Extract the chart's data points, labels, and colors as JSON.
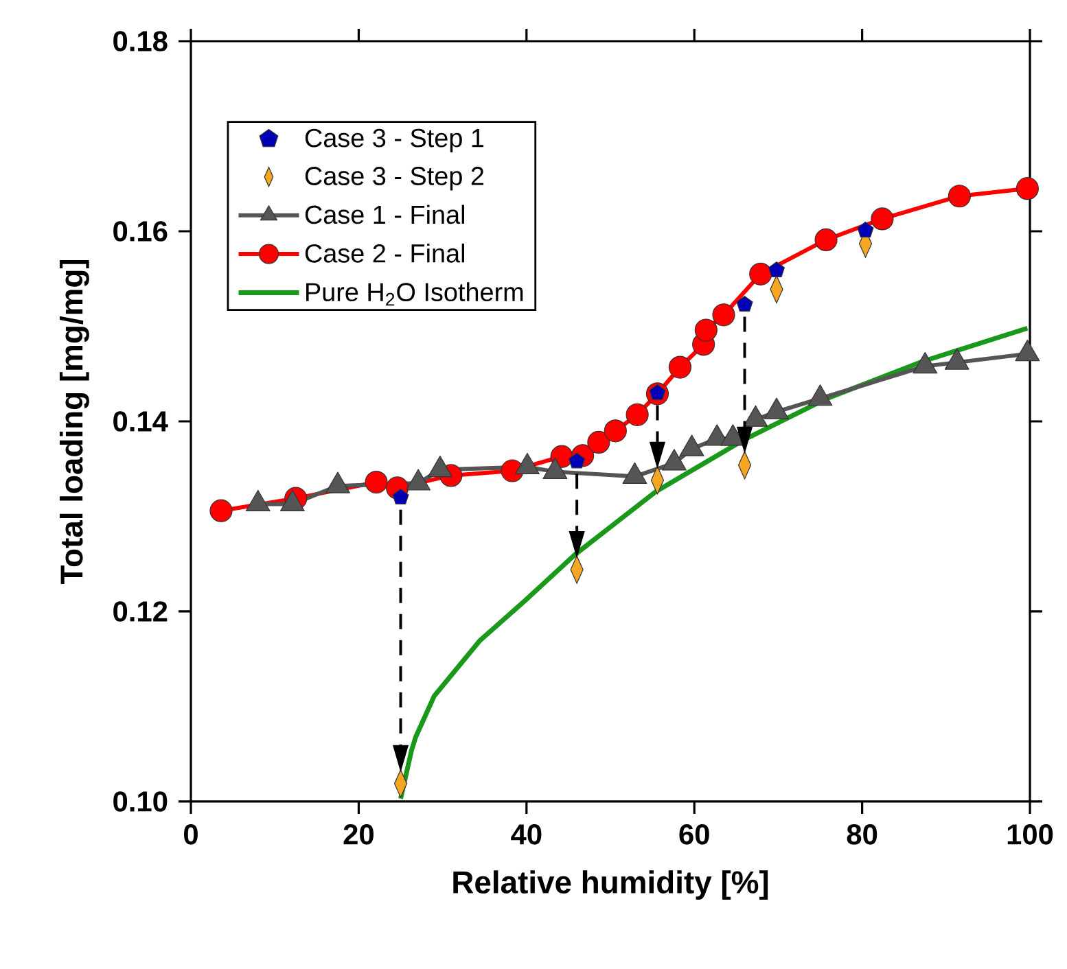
{
  "chart_data": {
    "type": "line",
    "xlabel": "Relative humidity [%]",
    "ylabel": "Total loading [mg/mg]",
    "xlim": [
      0,
      100
    ],
    "ylim": [
      0.1,
      0.18
    ],
    "xticks": [
      0,
      20,
      40,
      60,
      80,
      100
    ],
    "yticks": [
      {
        "value": 0.1,
        "label": "0.10"
      },
      0.12,
      0.14,
      0.16,
      0.18
    ],
    "legend": "top left",
    "series": [
      {
        "name": "Case 3 - Step 1",
        "type": "scatter",
        "color": "#0000b4",
        "x": [
          25,
          46,
          55.6,
          66,
          69.8,
          80.4
        ],
        "values": [
          0.132,
          0.1358,
          0.143,
          0.1523,
          0.1559,
          0.1601
        ]
      },
      {
        "name": "Case 3 - Step 2",
        "type": "scatter",
        "marker": "diamond",
        "color": "#f5a623",
        "x": [
          25,
          46,
          55.6,
          66,
          69.8,
          80.4
        ],
        "values": [
          0.1019,
          0.1244,
          0.1338,
          0.1354,
          0.1539,
          0.1587
        ]
      },
      {
        "name": "Case 1 - Final",
        "marker": "triangle",
        "color": "#555555",
        "x": [
          8,
          12.1,
          17.5,
          27.1,
          29.7,
          40.1,
          43.4,
          52.9,
          57.6,
          59.7,
          62.7,
          64.6,
          67.3,
          69.8,
          75,
          87.5,
          91.3,
          99.7
        ],
        "values": [
          0.1313,
          0.1313,
          0.1332,
          0.1335,
          0.1349,
          0.1352,
          0.1347,
          0.1342,
          0.1356,
          0.1371,
          0.1382,
          0.1382,
          0.1402,
          0.141,
          0.1424,
          0.1458,
          0.1462,
          0.1471
        ]
      },
      {
        "name": "Case 2 - Final",
        "marker": "circle",
        "color": "#ff0000",
        "x": [
          3.6,
          12.5,
          22.1,
          24.6,
          31,
          38.3,
          44.2,
          46.7,
          48.6,
          50.6,
          53.2,
          55.6,
          58.3,
          61.1,
          61.4,
          63.5,
          67.9,
          75.7,
          82.4,
          91.6,
          99.7
        ],
        "values": [
          0.1306,
          0.1319,
          0.1336,
          0.133,
          0.1343,
          0.1348,
          0.1363,
          0.1364,
          0.1378,
          0.139,
          0.1407,
          0.1429,
          0.1457,
          0.1481,
          0.1496,
          0.1512,
          0.1555,
          0.1591,
          0.1613,
          0.1637,
          0.1645
        ]
      },
      {
        "name": "Pure H$_{2}$O Isotherm",
        "marker": "none",
        "color": "#1a981a",
        "x": [
          25,
          26.3,
          26.8,
          29,
          34.4,
          39.9,
          45.8,
          55.4,
          66,
          75.8,
          87.2,
          99.7
        ],
        "values": [
          0.1003,
          0.1054,
          0.1068,
          0.1111,
          0.1169,
          0.1212,
          0.126,
          0.1326,
          0.1381,
          0.1424,
          0.1463,
          0.1498
        ]
      }
    ]
  }
}
